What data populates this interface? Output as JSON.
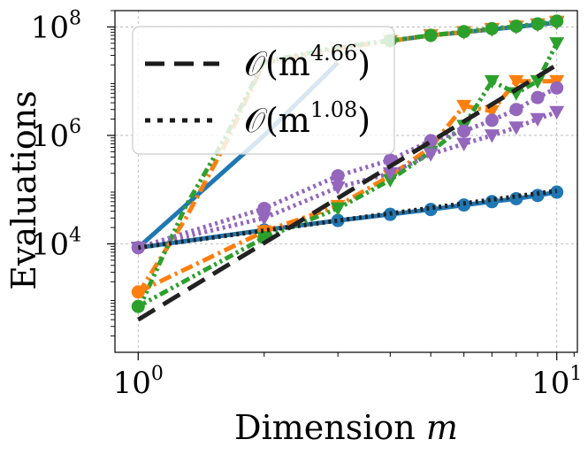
{
  "chart_data": {
    "type": "line",
    "xscale": "log",
    "yscale": "log",
    "xlim": [
      0.88,
      11.2
    ],
    "ylim": [
      100,
      200000000
    ],
    "grid": true,
    "xlabel_main": "Dimension ",
    "xlabel_var": "m",
    "ylabel": "Evaluations",
    "x_ticks": [
      {
        "value": 1,
        "base": "10",
        "exp": "0"
      },
      {
        "value": 10,
        "base": "10",
        "exp": "1"
      }
    ],
    "y_ticks": [
      {
        "value": 10000,
        "base": "10",
        "exp": "4"
      },
      {
        "value": 1000000,
        "base": "10",
        "exp": "6"
      },
      {
        "value": 100000000,
        "base": "10",
        "exp": "8"
      }
    ],
    "legend_position": "upper-left",
    "legend": [
      {
        "label_prefix": "𝒪(m",
        "exponent": "4.66",
        "label_suffix": ")",
        "style": "dashed",
        "color": "#1a1a1a"
      },
      {
        "label_prefix": "𝒪(m",
        "exponent": "1.08",
        "label_suffix": ")",
        "style": "dotted",
        "color": "#1a1a1a"
      }
    ],
    "series": [
      {
        "color": "#1f77b4",
        "dash": "none",
        "marker": "circle",
        "x": [
          1,
          2,
          3,
          4,
          5,
          6,
          7,
          8,
          9,
          10
        ],
        "y": [
          8500,
          18000,
          27000,
          35000,
          43000,
          52000,
          60000,
          68000,
          78000,
          90000
        ]
      },
      {
        "color": "#1f77b4",
        "dash": "none",
        "marker": "none",
        "x": [
          1,
          2,
          3
        ],
        "y": [
          8500,
          1000000,
          22000000
        ]
      },
      {
        "color": "#1f77b4",
        "dash": "none",
        "marker": "triangle-down",
        "x": [
          4,
          5,
          6,
          7,
          8,
          9,
          10
        ],
        "y": [
          55000000,
          70000000,
          80000000,
          90000000,
          100000000,
          110000000,
          120000000
        ]
      },
      {
        "color": "#ff7f0e",
        "dash": "dashdot",
        "marker": "none",
        "x": [
          1,
          1.3,
          1.6,
          2,
          3,
          4
        ],
        "y": [
          1200,
          30000,
          600000,
          22000000,
          40000000,
          55000000
        ]
      },
      {
        "color": "#2ca02c",
        "dash": "dashdotdot",
        "marker": "none",
        "x": [
          1,
          1.3,
          1.6,
          2,
          3,
          4
        ],
        "y": [
          600,
          50000,
          800000,
          23000000,
          42000000,
          57000000
        ]
      },
      {
        "color": "#ff7f0e",
        "dash": "dashdot",
        "marker": "triangle-down",
        "x": [
          4,
          5,
          6,
          7,
          8,
          9,
          10
        ],
        "y": [
          55000000,
          70000000,
          80000000,
          92000000,
          102000000,
          112000000,
          125000000
        ]
      },
      {
        "color": "#2ca02c",
        "dash": "dashdotdot",
        "marker": "circle",
        "x": [
          4,
          5,
          6,
          7,
          8,
          9,
          10
        ],
        "y": [
          56000000,
          70000000,
          82000000,
          93000000,
          103000000,
          114000000,
          128000000
        ]
      },
      {
        "color": "#ff7f0e",
        "dash": "dashdot",
        "marker": "circle",
        "x": [
          1,
          2
        ],
        "y": [
          1300,
          17000
        ]
      },
      {
        "color": "#ff7f0e",
        "dash": "dashdot",
        "marker": "triangle-down",
        "x": [
          2,
          3,
          4,
          5,
          6,
          7,
          8,
          9,
          10
        ],
        "y": [
          17000,
          50000,
          180000,
          600000,
          3500000,
          2800000,
          10000000,
          10000000,
          10000000
        ]
      },
      {
        "color": "#2ca02c",
        "dash": "dashdotdot",
        "marker": "circle",
        "x": [
          1,
          2
        ],
        "y": [
          700,
          13000
        ]
      },
      {
        "color": "#2ca02c",
        "dash": "dashdotdot",
        "marker": "triangle-down",
        "x": [
          2,
          3,
          4,
          5,
          6,
          7,
          8,
          9,
          10
        ],
        "y": [
          13000,
          45000,
          150000,
          500000,
          1500000,
          10000000,
          6000000,
          10000000,
          50000000
        ]
      },
      {
        "color": "#9467bd",
        "dash": "dotted",
        "marker": "circle",
        "x": [
          1,
          2,
          3,
          4,
          5,
          6,
          7,
          8,
          9,
          10
        ],
        "y": [
          8500,
          45000,
          180000,
          350000,
          800000,
          1200000,
          1900000,
          3000000,
          5000000,
          7500000
        ]
      },
      {
        "color": "#9467bd",
        "dash": "dotted",
        "marker": "triangle-down",
        "x": [
          1,
          2,
          3,
          4,
          5,
          6,
          7,
          8,
          9,
          10
        ],
        "y": [
          8500,
          30000,
          110000,
          200000,
          450000,
          700000,
          1000000,
          1400000,
          2000000,
          2700000
        ]
      },
      {
        "color": "#222222",
        "dash": "longdash",
        "marker": "none",
        "x": [
          1,
          10
        ],
        "y": [
          400,
          20000000
        ]
      },
      {
        "color": "#222222",
        "dash": "dotted",
        "marker": "none",
        "x": [
          1,
          10
        ],
        "y": [
          8500,
          95000
        ]
      }
    ]
  }
}
